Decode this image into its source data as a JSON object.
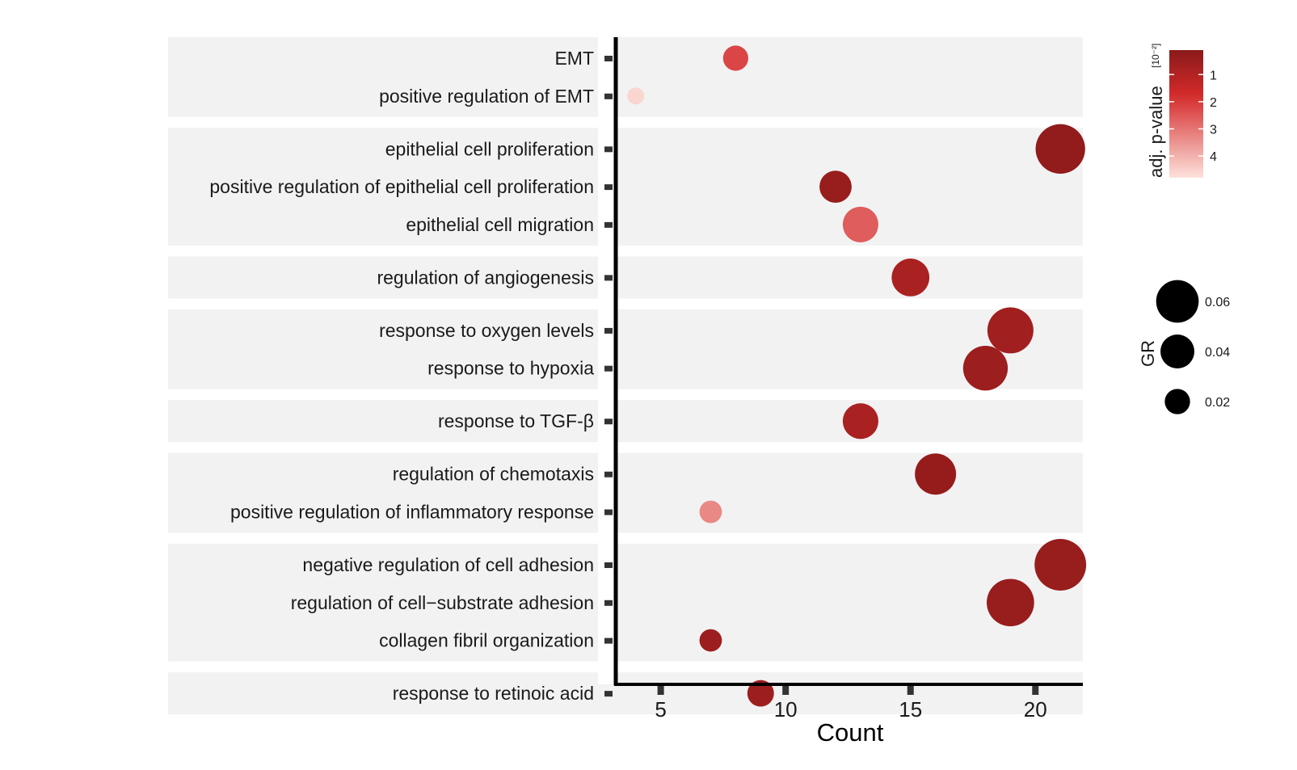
{
  "chart_data": {
    "type": "scatter",
    "xlabel": "Count",
    "ylabel": "",
    "xlim": [
      3.2,
      21.9
    ],
    "xticks": [
      5,
      10,
      15,
      20
    ],
    "groups": [
      {
        "terms": [
          "EMT",
          "positive regulation of EMT"
        ]
      },
      {
        "terms": [
          "epithelial cell proliferation",
          "positive regulation of epithelial cell proliferation",
          "epithelial cell migration"
        ]
      },
      {
        "terms": [
          "regulation of angiogenesis"
        ]
      },
      {
        "terms": [
          "response to oxygen levels ",
          "response to hypoxia"
        ]
      },
      {
        "terms": [
          "response to TGF-β"
        ]
      },
      {
        "terms": [
          "regulation of chemotaxis",
          "positive regulation of inflammatory response"
        ]
      },
      {
        "terms": [
          "negative regulation of cell adhesion",
          "regulation of cell−substrate adhesion",
          "collagen fibril organization"
        ]
      },
      {
        "terms": [
          "response to retinoic acid"
        ]
      }
    ],
    "points": [
      {
        "term": "EMT",
        "count": 8,
        "gr": 0.02,
        "padj": 2.2
      },
      {
        "term": "positive regulation of EMT",
        "count": 4,
        "gr": 0.008,
        "padj": 4.6
      },
      {
        "term": "epithelial cell proliferation",
        "count": 21,
        "gr": 0.055,
        "padj": 0.25
      },
      {
        "term": "positive regulation of epithelial cell proliferation",
        "count": 12,
        "gr": 0.03,
        "padj": 0.4
      },
      {
        "term": "epithelial cell migration",
        "count": 13,
        "gr": 0.035,
        "padj": 2.6
      },
      {
        "term": "regulation of angiogenesis",
        "count": 15,
        "gr": 0.038,
        "padj": 0.8
      },
      {
        "term": "response to oxygen levels ",
        "count": 19,
        "gr": 0.05,
        "padj": 0.6
      },
      {
        "term": "response to hypoxia",
        "count": 18,
        "gr": 0.048,
        "padj": 0.5
      },
      {
        "term": "response to TGF-β",
        "count": 13,
        "gr": 0.035,
        "padj": 0.8
      },
      {
        "term": "regulation of chemotaxis",
        "count": 16,
        "gr": 0.043,
        "padj": 0.35
      },
      {
        "term": "positive regulation of inflammatory response",
        "count": 7,
        "gr": 0.016,
        "padj": 3.3
      },
      {
        "term": "negative regulation of cell adhesion",
        "count": 21,
        "gr": 0.058,
        "padj": 0.4
      },
      {
        "term": "regulation of cell−substrate adhesion",
        "count": 19,
        "gr": 0.052,
        "padj": 0.4
      },
      {
        "term": "collagen fibril organization",
        "count": 7,
        "gr": 0.016,
        "padj": 0.5
      },
      {
        "term": "response to retinoic acid",
        "count": 9,
        "gr": 0.022,
        "padj": 0.5
      }
    ],
    "color_legend": {
      "title": "adj. p-value",
      "unit": "[10⁻²]",
      "ticks": [
        "1",
        "2",
        "3",
        "4"
      ],
      "tick_values": [
        1,
        2,
        3,
        4
      ],
      "range": [
        0.1,
        4.8
      ],
      "low_color": "#8b1a1a",
      "mid_color": "#d42a2a",
      "high_color": "#fde2dc"
    },
    "size_legend": {
      "title": "GR",
      "entries": [
        {
          "label": "0.06",
          "value": 0.06
        },
        {
          "label": "0.04",
          "value": 0.04
        },
        {
          "label": "0.02",
          "value": 0.02
        }
      ]
    },
    "colors": {
      "panel": "#f2f2f3",
      "axis": "#000000",
      "tick_mark": "#333333"
    }
  }
}
